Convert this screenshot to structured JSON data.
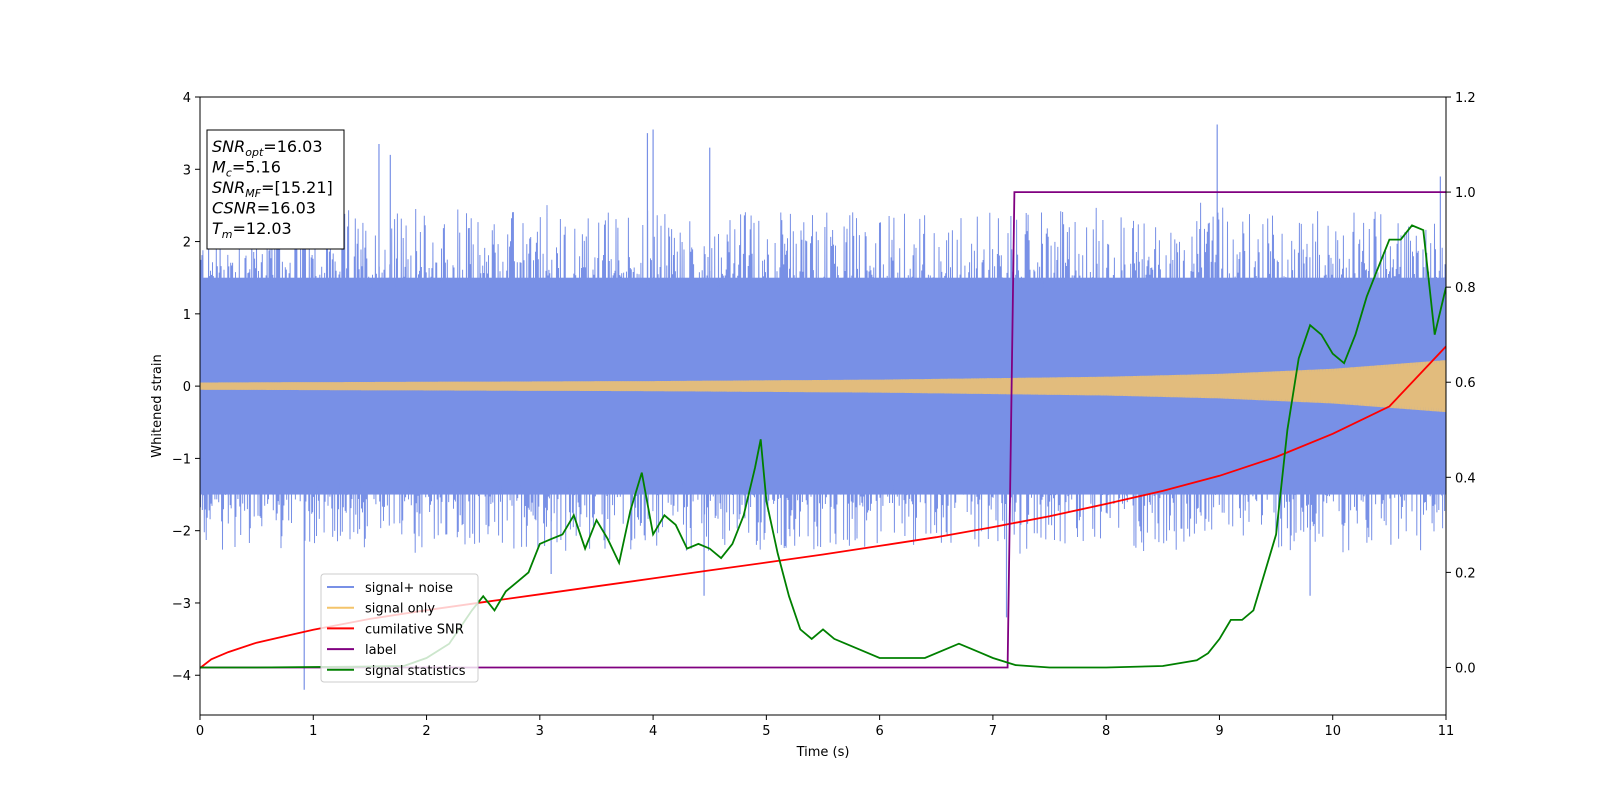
{
  "chart_data": {
    "type": "line",
    "xlabel": "Time (s)",
    "ylabel": "Whitened strain",
    "ylabel_right": "",
    "xlim": [
      0,
      11
    ],
    "ylim": [
      -4.55,
      4.0
    ],
    "ylim_right": [
      -0.1,
      1.2
    ],
    "xticks": [
      0,
      1,
      2,
      3,
      4,
      5,
      6,
      7,
      8,
      9,
      10,
      11
    ],
    "yticks": [
      -4,
      -3,
      -2,
      -1,
      0,
      1,
      2,
      3,
      4
    ],
    "yticks_right": [
      0.0,
      0.2,
      0.4,
      0.6,
      0.8,
      1.0,
      1.2
    ],
    "grid": false,
    "legend_position": "lower-left",
    "annotation_box": {
      "position": "top-left",
      "lines": [
        {
          "label": "SNR",
          "sub": "opt",
          "value": "=16.03"
        },
        {
          "label": "M",
          "sub": "c",
          "value": "=5.16"
        },
        {
          "label": "SNR",
          "sub": "MF",
          "value": "=[15.21]"
        },
        {
          "label": "CSNR",
          "sub": "",
          "value": "=16.03"
        },
        {
          "label": "T",
          "sub": "m",
          "value": "=12.03"
        }
      ]
    },
    "series": [
      {
        "name": "signal+ noise",
        "color": "#7890e6",
        "axis": "left",
        "description": "whitened noisy strain, dense fluctuations",
        "envelope": {
          "x": [
            0,
            11
          ],
          "upper": [
            2.4,
            2.4
          ],
          "lower": [
            -2.2,
            -2.2
          ],
          "dense_band": [
            1.5,
            -1.5
          ]
        },
        "spikes": [
          {
            "x": 0.92,
            "y": -4.2
          },
          {
            "x": 1.58,
            "y": 3.35
          },
          {
            "x": 1.68,
            "y": 3.2
          },
          {
            "x": 3.1,
            "y": -2.6
          },
          {
            "x": 3.95,
            "y": 3.5
          },
          {
            "x": 4.0,
            "y": 3.55
          },
          {
            "x": 4.45,
            "y": -2.9
          },
          {
            "x": 4.5,
            "y": 3.3
          },
          {
            "x": 7.12,
            "y": -3.2
          },
          {
            "x": 8.98,
            "y": 3.62
          },
          {
            "x": 9.8,
            "y": -2.9
          },
          {
            "x": 10.95,
            "y": 2.9
          }
        ]
      },
      {
        "name": "signal only",
        "color": "#f4c46a",
        "axis": "left",
        "description": "chirp with growing amplitude",
        "x": [
          0,
          2,
          4,
          6,
          8,
          9,
          10,
          11
        ],
        "amplitude": [
          0.05,
          0.06,
          0.07,
          0.09,
          0.13,
          0.17,
          0.24,
          0.36
        ]
      },
      {
        "name": "cumilative SNR",
        "color": "#ff0000",
        "axis": "left",
        "x": [
          0,
          0.1,
          0.25,
          0.5,
          1,
          1.5,
          2,
          2.5,
          3,
          3.5,
          4,
          4.5,
          5,
          5.5,
          6,
          6.5,
          7,
          7.5,
          8,
          8.5,
          9,
          9.5,
          10,
          10.5,
          11
        ],
        "y": [
          -3.9,
          -3.78,
          -3.68,
          -3.55,
          -3.37,
          -3.22,
          -3.1,
          -2.99,
          -2.88,
          -2.77,
          -2.66,
          -2.55,
          -2.44,
          -2.33,
          -2.21,
          -2.09,
          -1.95,
          -1.8,
          -1.63,
          -1.45,
          -1.24,
          -0.98,
          -0.66,
          -0.28,
          0.55
        ]
      },
      {
        "name": "label",
        "color": "#800080",
        "axis": "right",
        "x": [
          0,
          7.13,
          7.19,
          11
        ],
        "y": [
          0.0,
          0.0,
          1.0,
          1.0
        ]
      },
      {
        "name": "signal statistics",
        "color": "#008000",
        "axis": "right",
        "x": [
          0,
          0.5,
          1.0,
          1.5,
          1.8,
          2.0,
          2.2,
          2.4,
          2.5,
          2.6,
          2.7,
          2.8,
          2.9,
          3.0,
          3.1,
          3.2,
          3.3,
          3.4,
          3.5,
          3.6,
          3.7,
          3.8,
          3.9,
          4.0,
          4.1,
          4.2,
          4.3,
          4.4,
          4.5,
          4.6,
          4.7,
          4.8,
          4.9,
          4.95,
          5.0,
          5.1,
          5.2,
          5.3,
          5.4,
          5.5,
          5.6,
          5.7,
          5.8,
          5.9,
          6.0,
          6.2,
          6.4,
          6.6,
          6.7,
          6.8,
          6.9,
          7.0,
          7.2,
          7.5,
          8.0,
          8.5,
          8.8,
          8.9,
          9.0,
          9.1,
          9.2,
          9.3,
          9.4,
          9.5,
          9.6,
          9.7,
          9.8,
          9.9,
          10.0,
          10.1,
          10.2,
          10.3,
          10.4,
          10.5,
          10.6,
          10.7,
          10.8,
          10.9,
          11.0
        ],
        "y": [
          0.0,
          0.0,
          0.001,
          0.002,
          0.003,
          0.02,
          0.05,
          0.12,
          0.15,
          0.12,
          0.16,
          0.18,
          0.2,
          0.26,
          0.27,
          0.28,
          0.32,
          0.25,
          0.31,
          0.27,
          0.22,
          0.33,
          0.41,
          0.28,
          0.32,
          0.3,
          0.25,
          0.26,
          0.25,
          0.23,
          0.26,
          0.32,
          0.42,
          0.48,
          0.35,
          0.24,
          0.15,
          0.08,
          0.06,
          0.08,
          0.06,
          0.05,
          0.04,
          0.03,
          0.02,
          0.02,
          0.02,
          0.04,
          0.05,
          0.04,
          0.03,
          0.02,
          0.005,
          0.0,
          0.0,
          0.003,
          0.015,
          0.03,
          0.06,
          0.1,
          0.1,
          0.12,
          0.2,
          0.28,
          0.5,
          0.65,
          0.72,
          0.7,
          0.66,
          0.64,
          0.7,
          0.78,
          0.84,
          0.9,
          0.9,
          0.93,
          0.92,
          0.7,
          0.8
        ]
      }
    ]
  }
}
